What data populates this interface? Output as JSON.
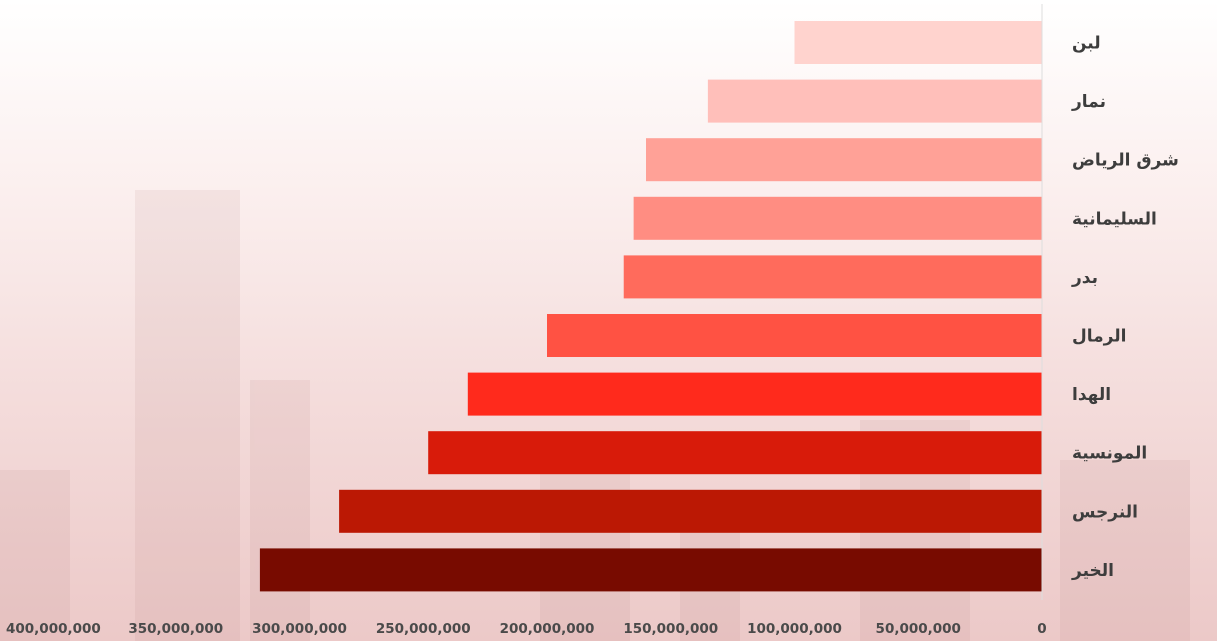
{
  "chart_data": {
    "type": "bar",
    "orientation": "horizontal",
    "x_axis_reversed": true,
    "categories": [
      "لبن",
      "نمار",
      "شرق الرياض",
      "السليمانية",
      "بدر",
      "الرمال",
      "الهدا",
      "المونسية",
      "النرجس",
      "الخير"
    ],
    "values": [
      100000000,
      135000000,
      160000000,
      165000000,
      169000000,
      200000000,
      232000000,
      248000000,
      284000000,
      316000000
    ],
    "bar_colors": [
      "#ffd3ce",
      "#ffbfba",
      "#ffa197",
      "#ff8d82",
      "#ff6b5c",
      "#ff5243",
      "#ff2a1c",
      "#d81b0a",
      "#bb1804",
      "#780b00"
    ],
    "xlim": [
      0,
      400000000
    ],
    "x_ticks": [
      0,
      50000000,
      100000000,
      150000000,
      200000000,
      250000000,
      300000000,
      350000000,
      400000000
    ],
    "x_tick_labels": [
      "0",
      "50,000,000",
      "100,000,000",
      "150,000,000",
      "200,000,000",
      "250,000,000",
      "300,000,000",
      "350,000,000",
      "400,000,000"
    ],
    "grid": false,
    "legend": "none"
  }
}
